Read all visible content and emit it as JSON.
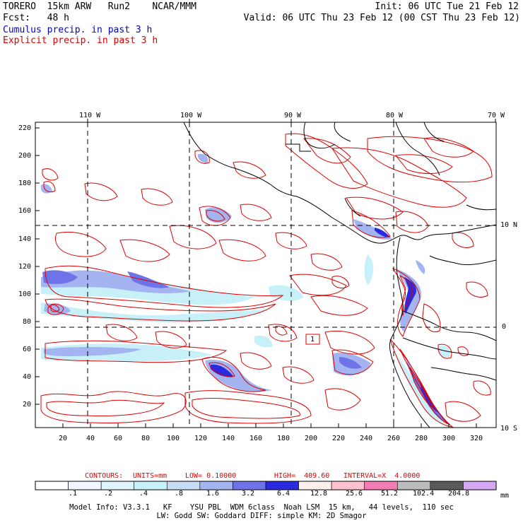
{
  "header": {
    "model": "TORERO  15km ARW   Run2    NCAR/MMM",
    "init": "Init: 06 UTC Tue 21 Feb 12",
    "fcst": "Fcst:   48 h",
    "valid": "Valid: 06 UTC Thu 23 Feb 12 (00 CST Thu 23 Feb 12)",
    "field1": "Cumulus precip. in past 3 h",
    "field2": "Explicit precip. in past 3 h"
  },
  "axes": {
    "lon_labels": [
      "110 W",
      "100 W",
      "90 W",
      "80 W",
      "70 W"
    ],
    "lat_labels": [
      "10 N",
      "0",
      "10 S"
    ],
    "y_ticks": [
      "220",
      "200",
      "180",
      "160",
      "140",
      "120",
      "100",
      "80",
      "60",
      "40",
      "20"
    ],
    "x_ticks": [
      "20",
      "40",
      "60",
      "80",
      "100",
      "120",
      "140",
      "160",
      "180",
      "200",
      "220",
      "240",
      "260",
      "280",
      "300",
      "320"
    ]
  },
  "box_label": "1",
  "contours": {
    "label": "CONTOURS:",
    "units": "UNITS=mm",
    "low": "LOW= 0.10000",
    "high": "HIGH=  409.60",
    "interval": "INTERVAL=X  4.0000"
  },
  "colorbar": {
    "unit": "mm",
    "labels": [
      ".1",
      ".2",
      ".4",
      ".8",
      "1.6",
      "3.2",
      "6.4",
      "12.8",
      "25.6",
      "51.2",
      "102.4",
      "204.8"
    ],
    "colors": [
      "#ffffff",
      "#f2f7ff",
      "#e0f4ff",
      "#c8f0f8",
      "#c6dcf6",
      "#a4b4f0",
      "#6e74e8",
      "#2a2ae0",
      "#fff0ee",
      "#ffc0d0",
      "#f47cb4",
      "#bdbdbd",
      "#5a5a5a",
      "#d6a8f4"
    ]
  },
  "footer": {
    "line1": "Model Info: V3.3.1   KF    YSU PBL  WDM 6class  Noah LSM  15 km,   44 levels,  110 sec",
    "line2": "LW: Godd SW: Goddard DIFF: simple KM: 2D Smagor"
  }
}
